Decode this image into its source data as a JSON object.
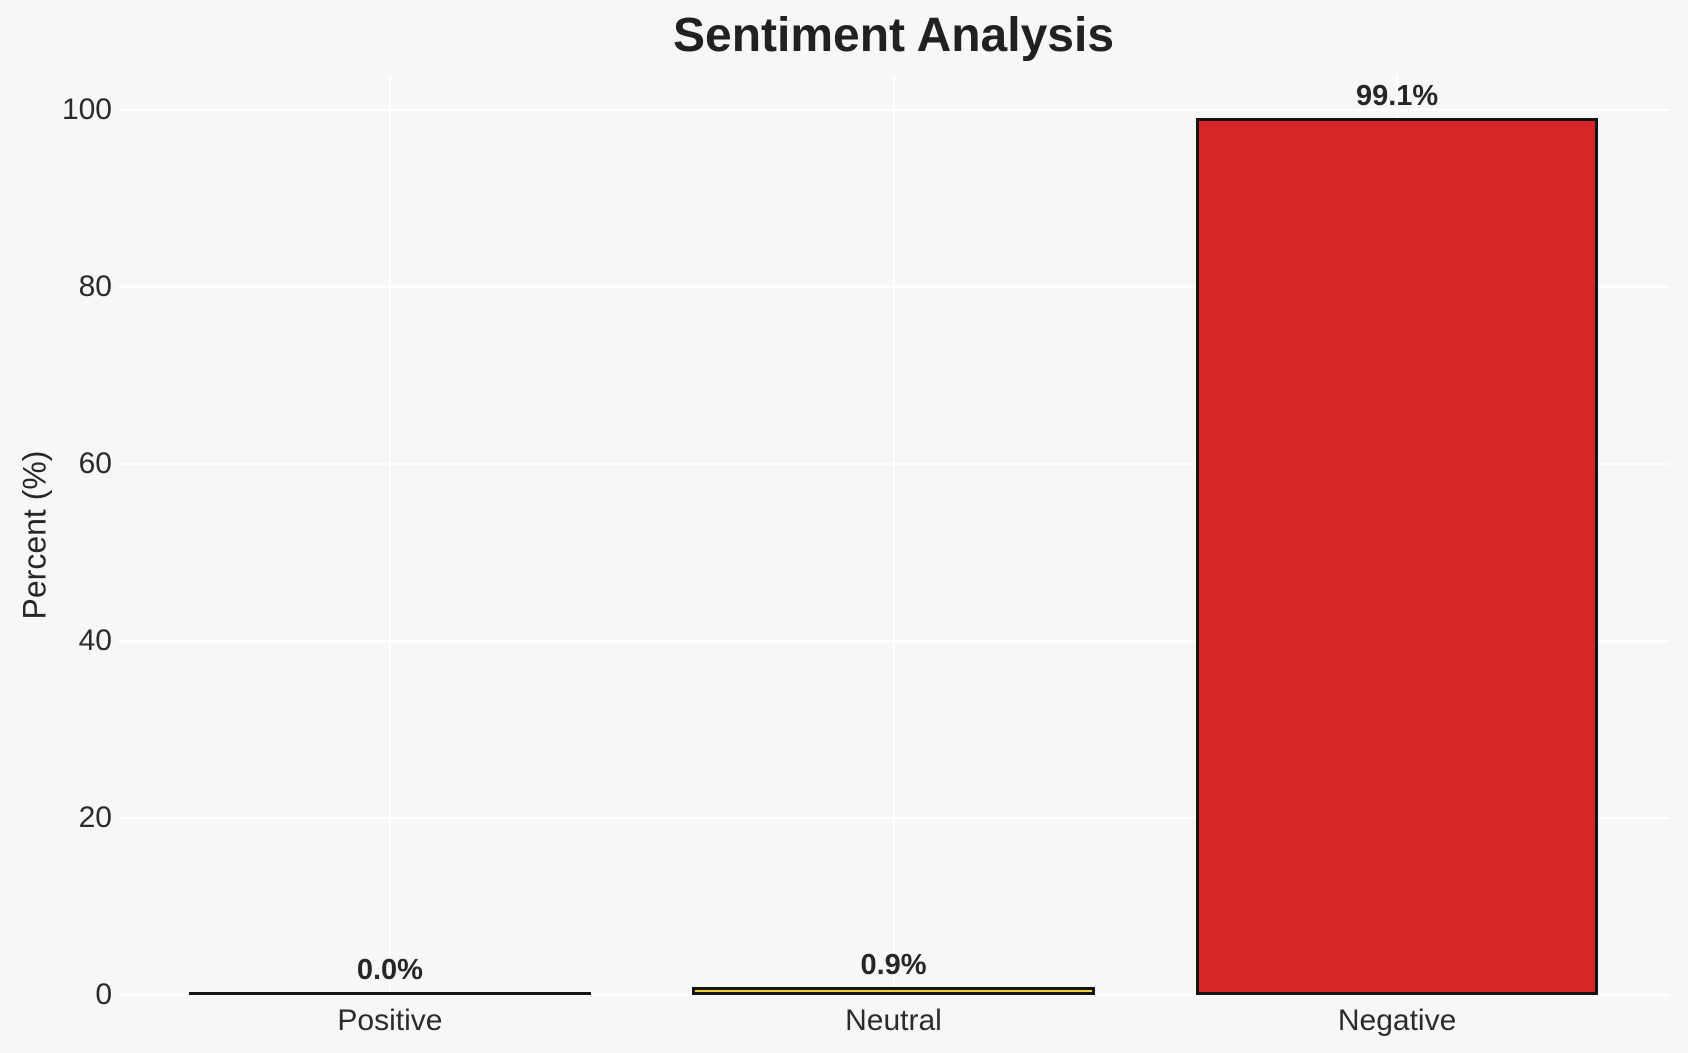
{
  "chart_data": {
    "type": "bar",
    "title": "Sentiment Analysis",
    "xlabel": "",
    "ylabel": "Percent (%)",
    "categories": [
      "Positive",
      "Neutral",
      "Negative"
    ],
    "values": [
      0.0,
      0.9,
      99.1
    ],
    "bar_value_labels": [
      "0.0%",
      "0.9%",
      "99.1%"
    ],
    "bar_colors": [
      null,
      "#f4d03f",
      "#d62728"
    ],
    "bar_edge_color": "#141414",
    "yticks": [
      0,
      20,
      40,
      60,
      80,
      100
    ],
    "ytick_labels": [
      "0",
      "20",
      "40",
      "60",
      "80",
      "100"
    ],
    "ylim": [
      0,
      104
    ],
    "bar_width_fraction": 0.8,
    "grid": {
      "horizontal": true,
      "vertical": true,
      "color": "#ffffff"
    },
    "legend_position": "none",
    "background_color": "#f7f7f8",
    "text_color": "#262626"
  }
}
